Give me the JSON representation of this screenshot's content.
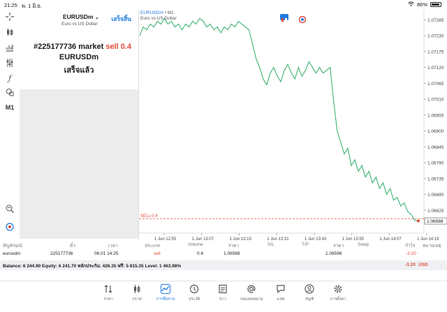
{
  "statusbar": {
    "time": "21:25",
    "date": "พ. 1 มิ.ย.",
    "battery": "86%"
  },
  "order_panel": {
    "symbol": "EURUSDm",
    "description": "Euro vs US Dollar",
    "done_label": "เสร็จสิ้น",
    "order_number": "#225177736",
    "order_type": "market",
    "order_side": "sell 0.4",
    "order_symbol": "EURUSDm",
    "order_status": "เสร็จแล้ว"
  },
  "toolbar": {
    "timeframe": "M1"
  },
  "chart": {
    "symbol": "EURUSDm",
    "timeframe": "• M1",
    "description": "Euro vs US Dollar",
    "sell_label": "SELL 0.4",
    "current_price": "1.06588",
    "line_color": "#3cb371",
    "sell_line_color": "#e04a3a"
  },
  "chart_data": {
    "type": "line",
    "yticks": [
      "1.07285",
      "1.07230",
      "1.07175",
      "1.07120",
      "1.07065",
      "1.07010",
      "1.06955",
      "1.06900",
      "1.06845",
      "1.06790",
      "1.06735",
      "1.06680",
      "1.06625"
    ],
    "xticks": [
      "1 Jun 12:55",
      "1 Jun 13:07",
      "1 Jun 13:19",
      "1 Jun 13:31",
      "1 Jun 13:43",
      "1 Jun 13:55",
      "1 Jun 14:07",
      "1 Jun 14:19"
    ],
    "ylim": [
      1.0657,
      1.0731
    ],
    "sell_price": 1.06596,
    "values": [
      1.0723,
      1.0726,
      1.0725,
      1.0727,
      1.0726,
      1.0728,
      1.0727,
      1.0729,
      1.0727,
      1.0728,
      1.0726,
      1.0727,
      1.0725,
      1.0727,
      1.0726,
      1.0728,
      1.0727,
      1.0729,
      1.0728,
      1.0726,
      1.0727,
      1.0725,
      1.0726,
      1.0724,
      1.0726,
      1.0725,
      1.0727,
      1.0726,
      1.0728,
      1.0727,
      1.0726,
      1.0725,
      1.072,
      1.0715,
      1.0712,
      1.0708,
      1.0706,
      1.071,
      1.0712,
      1.0709,
      1.0707,
      1.0711,
      1.0713,
      1.071,
      1.0708,
      1.0712,
      1.0709,
      1.0711,
      1.0714,
      1.0712,
      1.071,
      1.0712,
      1.071,
      1.0711,
      1.0712,
      1.07,
      1.069,
      1.0686,
      1.0682,
      1.0684,
      1.0678,
      1.068,
      1.0676,
      1.0678,
      1.0674,
      1.0676,
      1.0672,
      1.0674,
      1.067,
      1.0672,
      1.0668,
      1.067,
      1.0666,
      1.0667,
      1.0664,
      1.0665,
      1.0662,
      1.0661,
      1.0659,
      1.06588
    ]
  },
  "positions": {
    "headers": [
      "สัญลักษณ์",
      "ตั๋ว",
      "เวลา",
      "ประเภท",
      "Volume",
      "ราคา",
      "S/L",
      "T/P",
      "ราคา",
      "Swap",
      "กำไร",
      "หมายเหตุ"
    ],
    "row": {
      "symbol": "eurusdm",
      "ticket": "225177736",
      "time": "06.01 14:25",
      "type": "sell",
      "volume": "0.4",
      "open_price": "1.06588",
      "sl": "",
      "tp": "",
      "price": "1.06596",
      "swap": "",
      "profit": "-3.20",
      "comment": ""
    },
    "balance_text": "Balance: 6 244.90 Equity: 6 241.70 หลักประกัน: 426.35 ฟรี: 5 815.35 Level: 1 463.98%",
    "total_profit": "-3.20",
    "currency": "USD"
  },
  "nav": {
    "items": [
      {
        "label": "ราคา",
        "icon": "quotes-icon"
      },
      {
        "label": "กราฟ",
        "icon": "chart-icon"
      },
      {
        "label": "การซื้อขาย",
        "icon": "trade-icon"
      },
      {
        "label": "ประวัติ",
        "icon": "history-icon"
      },
      {
        "label": "ข่าว",
        "icon": "news-icon"
      },
      {
        "label": "กล่องจดหมาย",
        "icon": "mailbox-icon"
      },
      {
        "label": "แชท",
        "icon": "chat-icon"
      },
      {
        "label": "บัญชี",
        "icon": "account-icon"
      },
      {
        "label": "การตั้งค่า",
        "icon": "settings-icon"
      }
    ]
  },
  "colors": {
    "accent": "#1e7be0",
    "sell": "#e04a3a",
    "line": "#3cb371"
  }
}
